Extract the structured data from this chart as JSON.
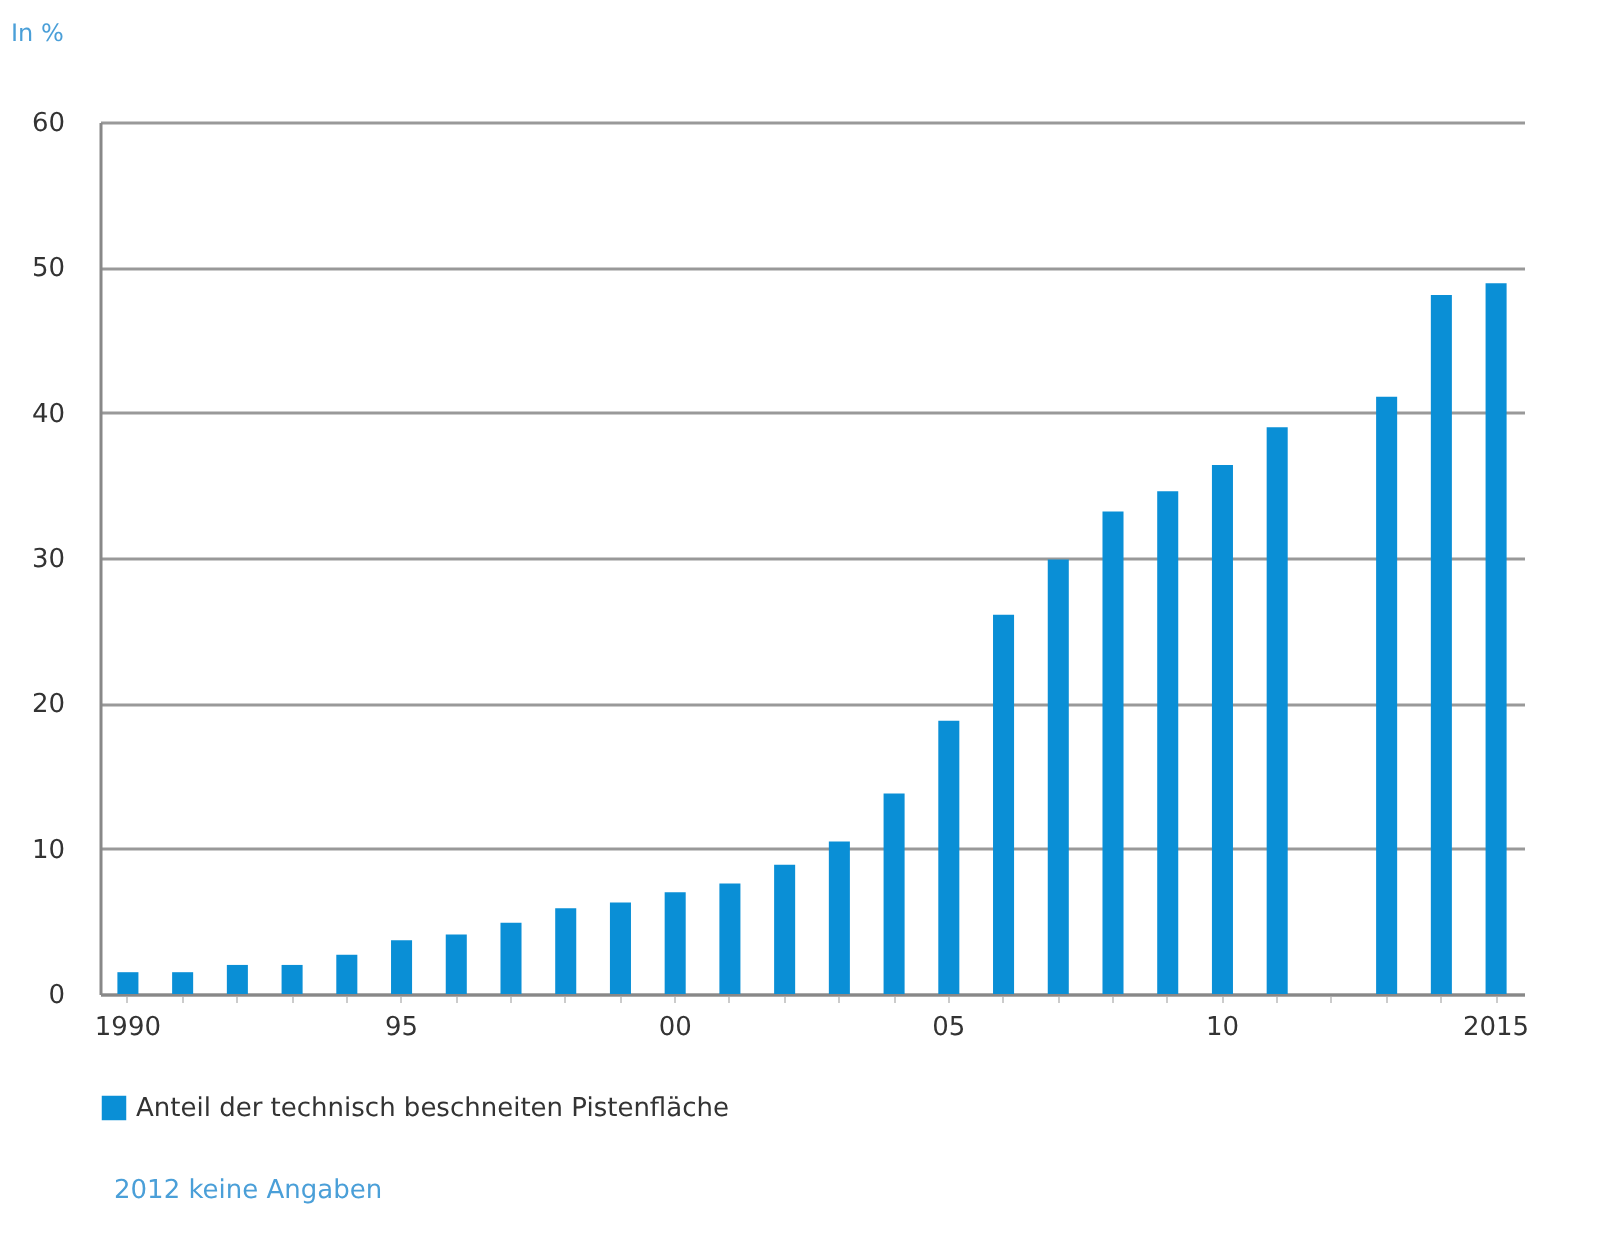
{
  "chart_data": {
    "type": "bar",
    "ylabel": "In %",
    "categories": [
      "1990",
      null,
      null,
      null,
      null,
      "95",
      null,
      null,
      null,
      null,
      "00",
      null,
      null,
      null,
      null,
      "05",
      null,
      null,
      null,
      null,
      "10",
      null,
      null,
      null,
      null,
      "2015"
    ],
    "series": [
      {
        "name": "Anteil der technisch beschneiten Pistenfläche",
        "color": "#0a8fd6",
        "values": [
          1.5,
          1.5,
          2.0,
          2.0,
          2.7,
          3.7,
          4.1,
          4.9,
          5.9,
          6.3,
          7.0,
          7.6,
          8.9,
          10.5,
          13.8,
          18.8,
          26.1,
          29.9,
          33.2,
          34.6,
          36.4,
          39.0,
          null,
          41.1,
          48.1,
          48.9
        ]
      }
    ],
    "ylim": [
      0,
      60
    ],
    "yticks": [
      0,
      10,
      20,
      30,
      40,
      50,
      60
    ],
    "grid": "y",
    "legend": "bottom left",
    "annotations": [
      "2012 keine Angaben"
    ]
  }
}
